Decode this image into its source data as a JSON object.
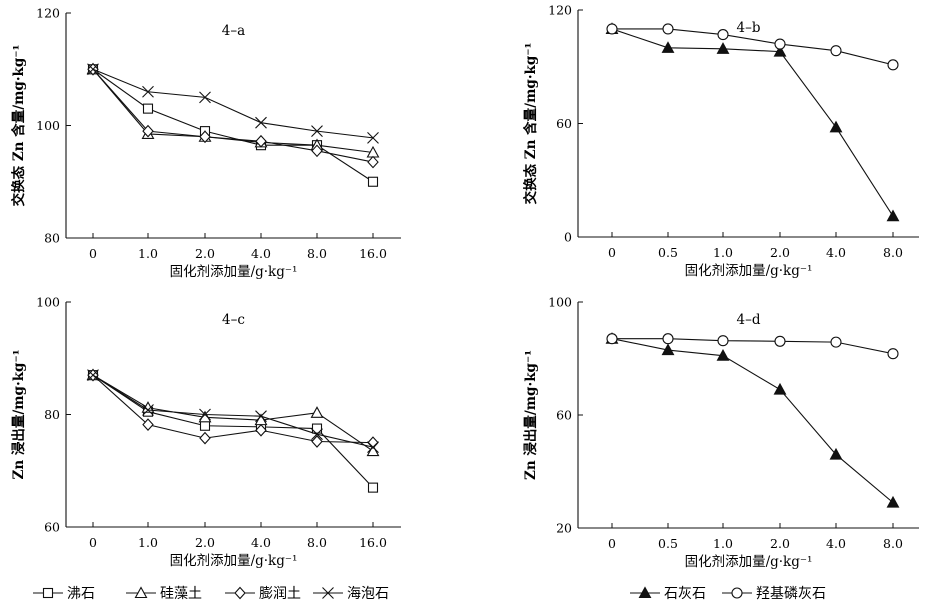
{
  "chart_data": [
    {
      "type": "line",
      "title": "4–a",
      "xlabel": "固化剂添加量/g·kg⁻¹",
      "ylabel": "交换态 Zn 含量/mg·kg⁻¹",
      "categories": [
        "0",
        "1.0",
        "2.0",
        "4.0",
        "8.0",
        "16.0"
      ],
      "ylim": [
        80,
        120
      ],
      "yticks": [
        80,
        100,
        120
      ],
      "series": [
        {
          "name": "沸石",
          "marker": "square",
          "values": [
            110,
            103,
            99,
            96.5,
            96.5,
            90
          ]
        },
        {
          "name": "硅藻土",
          "marker": "triangle",
          "values": [
            110,
            98.5,
            98,
            97,
            96.5,
            95.2
          ]
        },
        {
          "name": "膨润土",
          "marker": "diamond",
          "values": [
            110,
            99,
            98,
            97.2,
            95.5,
            93.5
          ]
        },
        {
          "name": "海泡石",
          "marker": "x",
          "values": [
            110,
            106,
            105,
            100.5,
            99,
            97.8
          ]
        }
      ]
    },
    {
      "type": "line",
      "title": "4–b",
      "xlabel": "固化剂添加量/g·kg⁻¹",
      "ylabel": "交换态 Zn 含量/mg·kg⁻¹",
      "categories": [
        "0",
        "0.5",
        "1.0",
        "2.0",
        "4.0",
        "8.0"
      ],
      "ylim": [
        0,
        120
      ],
      "yticks": [
        0,
        60,
        120
      ],
      "series": [
        {
          "name": "石灰石",
          "marker": "filled-triangle",
          "values": [
            110,
            100,
            99.5,
            98,
            58,
            11
          ]
        },
        {
          "name": "羟基磷灰石",
          "marker": "circle",
          "values": [
            110,
            110,
            107,
            102,
            98.5,
            91
          ]
        }
      ]
    },
    {
      "type": "line",
      "title": "4–c",
      "xlabel": "固化剂添加量/g·kg⁻¹",
      "ylabel": "Zn 浸出量/mg·kg⁻¹",
      "categories": [
        "0",
        "1.0",
        "2.0",
        "4.0",
        "8.0",
        "16.0"
      ],
      "ylim": [
        60,
        100
      ],
      "yticks": [
        60,
        80,
        100
      ],
      "series": [
        {
          "name": "沸石",
          "marker": "square",
          "values": [
            87,
            80.5,
            78,
            77.8,
            77.5,
            67
          ]
        },
        {
          "name": "硅藻土",
          "marker": "triangle",
          "values": [
            87,
            81.2,
            79.5,
            79,
            80.3,
            73.5
          ]
        },
        {
          "name": "膨润土",
          "marker": "diamond",
          "values": [
            87,
            78.2,
            75.8,
            77.2,
            75.2,
            75
          ]
        },
        {
          "name": "海泡石",
          "marker": "x",
          "values": [
            87,
            80.8,
            80,
            79.7,
            76.5,
            74.2
          ]
        }
      ]
    },
    {
      "type": "line",
      "title": "4–d",
      "xlabel": "固化剂添加量/g·kg⁻¹",
      "ylabel": "Zn 浸出量/mg·kg⁻¹",
      "categories": [
        "0",
        "0.5",
        "1.0",
        "2.0",
        "4.0",
        "8.0"
      ],
      "ylim": [
        20,
        100
      ],
      "yticks": [
        20,
        60,
        100
      ],
      "series": [
        {
          "name": "石灰石",
          "marker": "filled-triangle",
          "values": [
            87,
            83,
            81,
            69,
            46,
            29
          ]
        },
        {
          "name": "羟基磷灰石",
          "marker": "circle",
          "values": [
            87,
            87,
            86.3,
            86.1,
            85.8,
            81.7
          ]
        }
      ]
    }
  ],
  "legend_left": [
    "沸石",
    "硅藻土",
    "膨润土",
    "海泡石"
  ],
  "legend_right": [
    "石灰石",
    "羟基磷灰石"
  ]
}
